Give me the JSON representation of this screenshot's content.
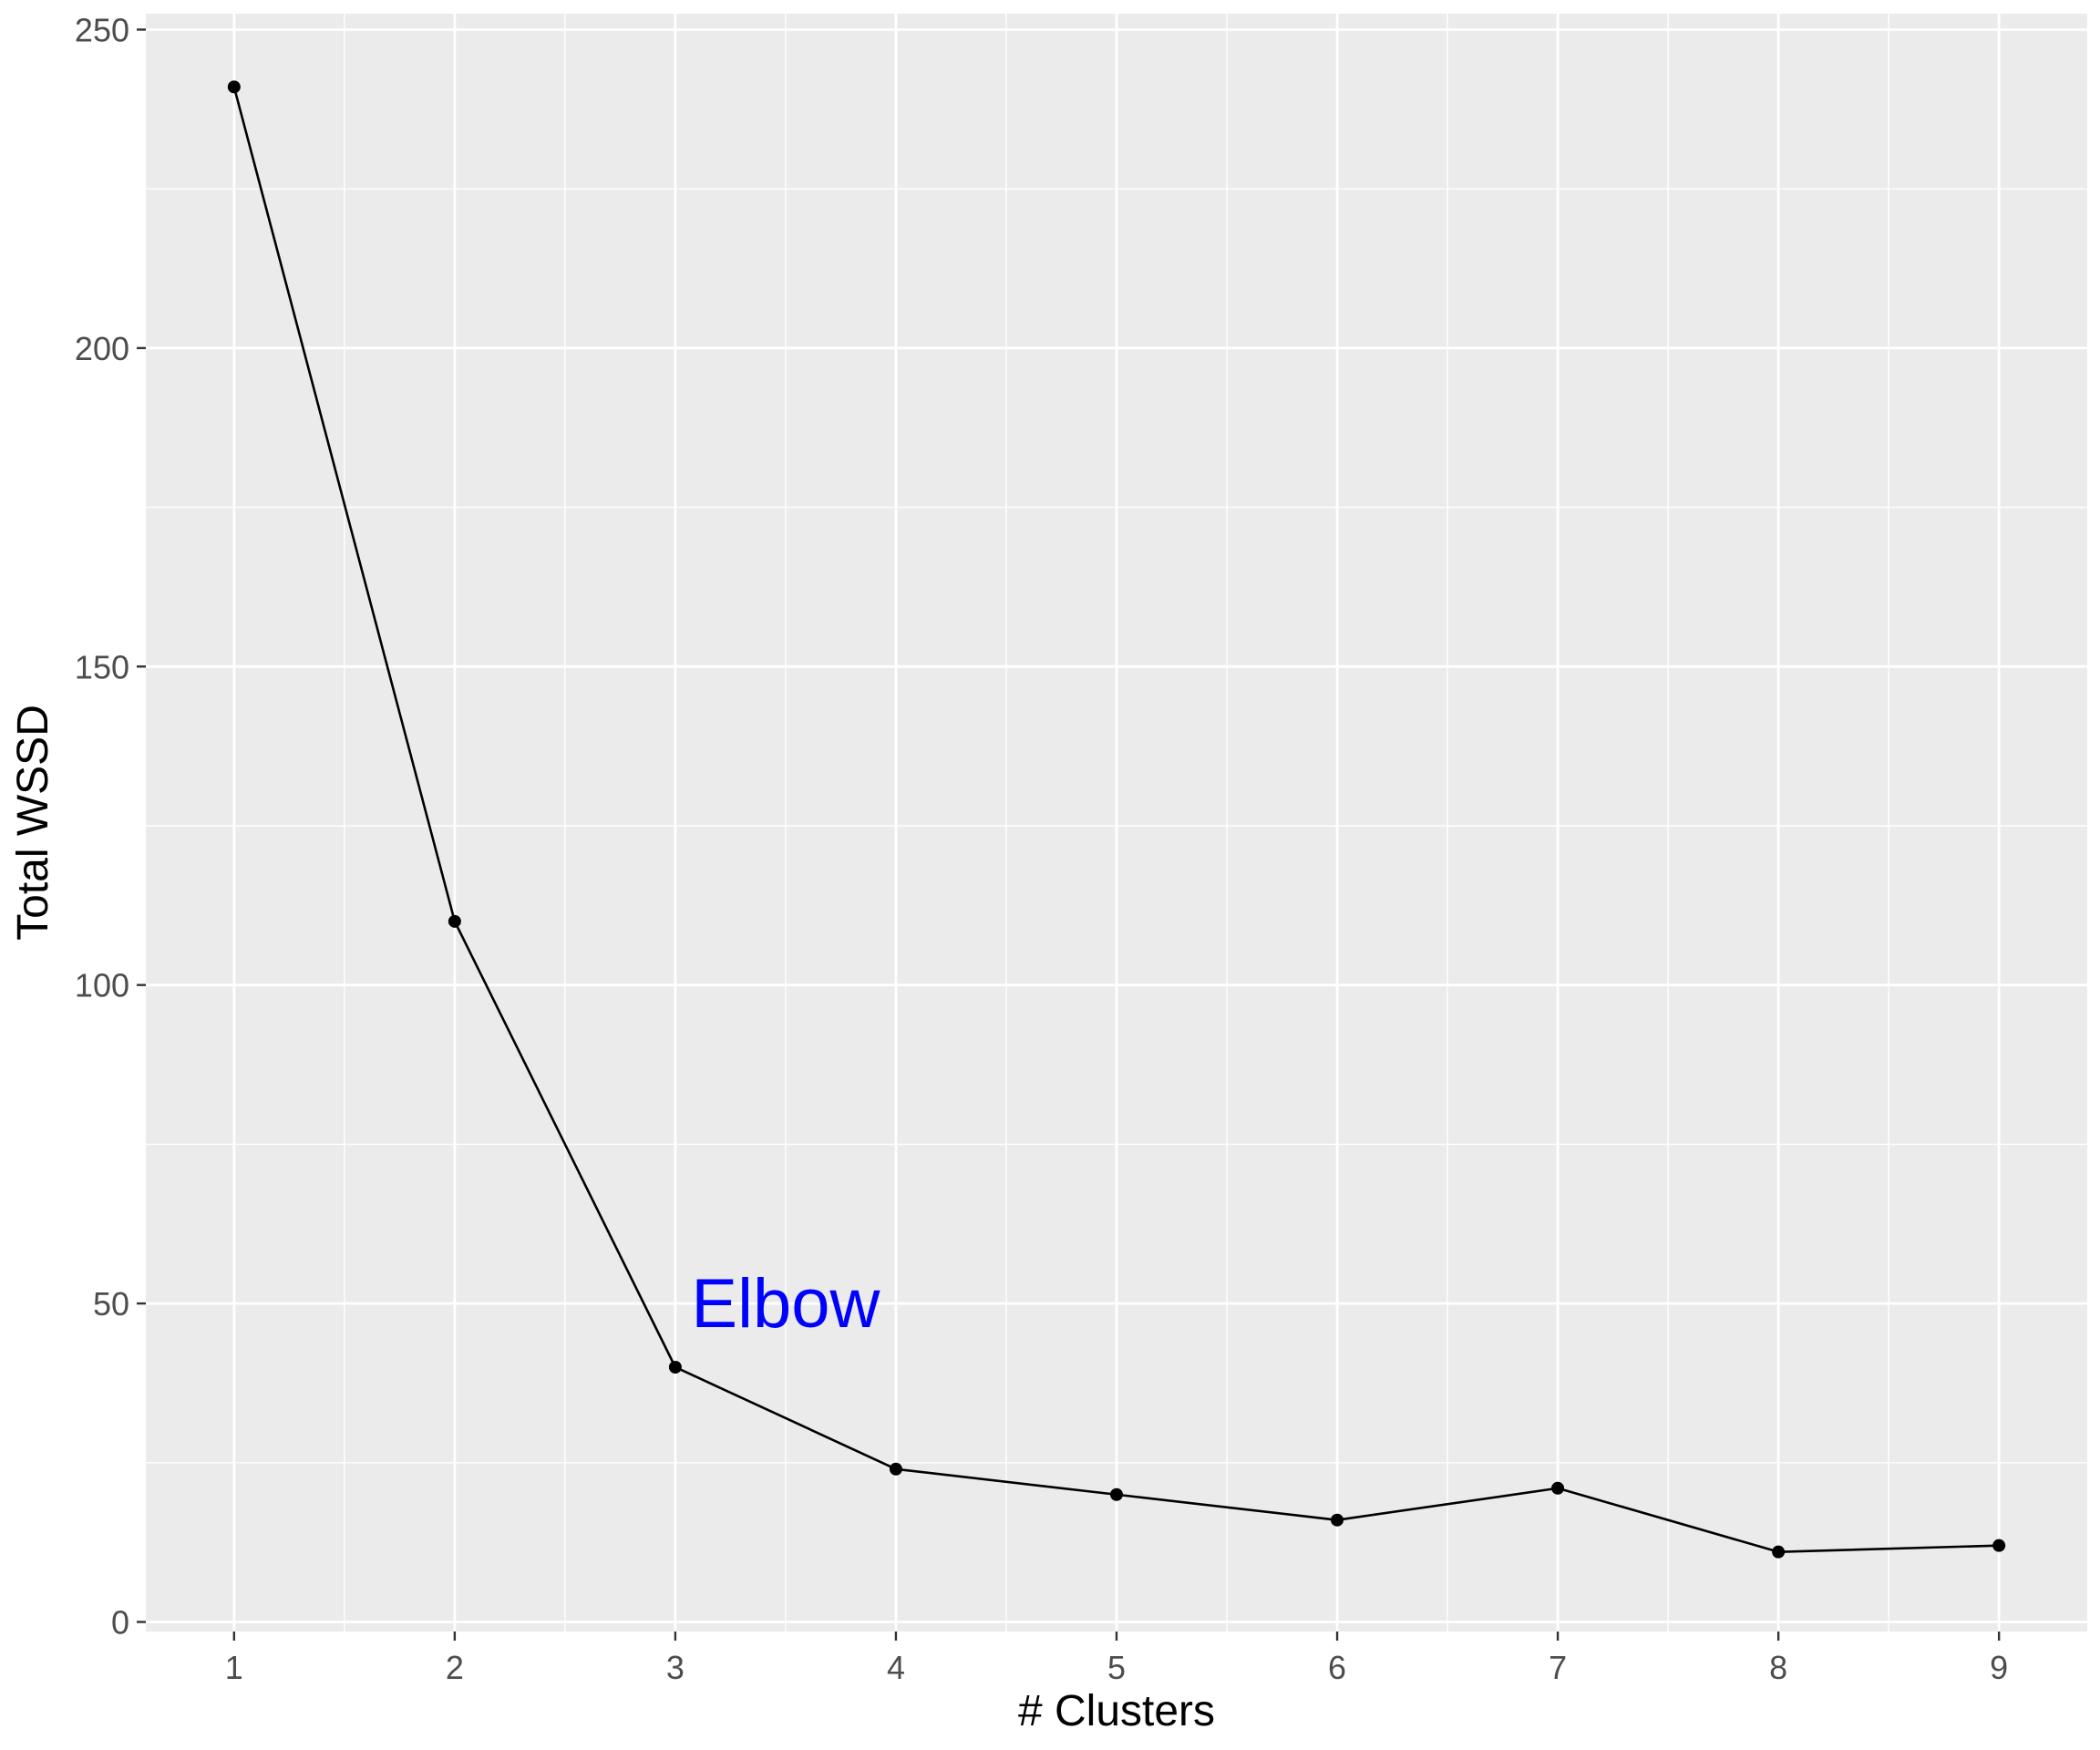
{
  "chart_data": {
    "type": "line",
    "title": "",
    "xlabel": "# Clusters",
    "ylabel": "Total WSSD",
    "x": [
      1,
      2,
      3,
      4,
      5,
      6,
      7,
      8,
      9
    ],
    "series": [
      {
        "values": [
          241,
          110,
          40,
          24,
          20,
          16,
          21,
          11,
          12
        ]
      }
    ],
    "xlim": [
      0.6,
      9.4
    ],
    "ylim": [
      -1.5,
      252.5
    ],
    "x_ticks": [
      "1",
      "2",
      "3",
      "4",
      "5",
      "6",
      "7",
      "8",
      "9"
    ],
    "y_ticks": [
      "0",
      "50",
      "100",
      "150",
      "200",
      "250"
    ],
    "grid": true,
    "legend": "none",
    "annotation": {
      "text": "Elbow",
      "x": 3.5,
      "y": 50,
      "color": "#0000ff"
    },
    "colors": {
      "panel": "#ebebeb",
      "grid": "#ffffff",
      "line": "#000000",
      "point": "#000000"
    }
  }
}
